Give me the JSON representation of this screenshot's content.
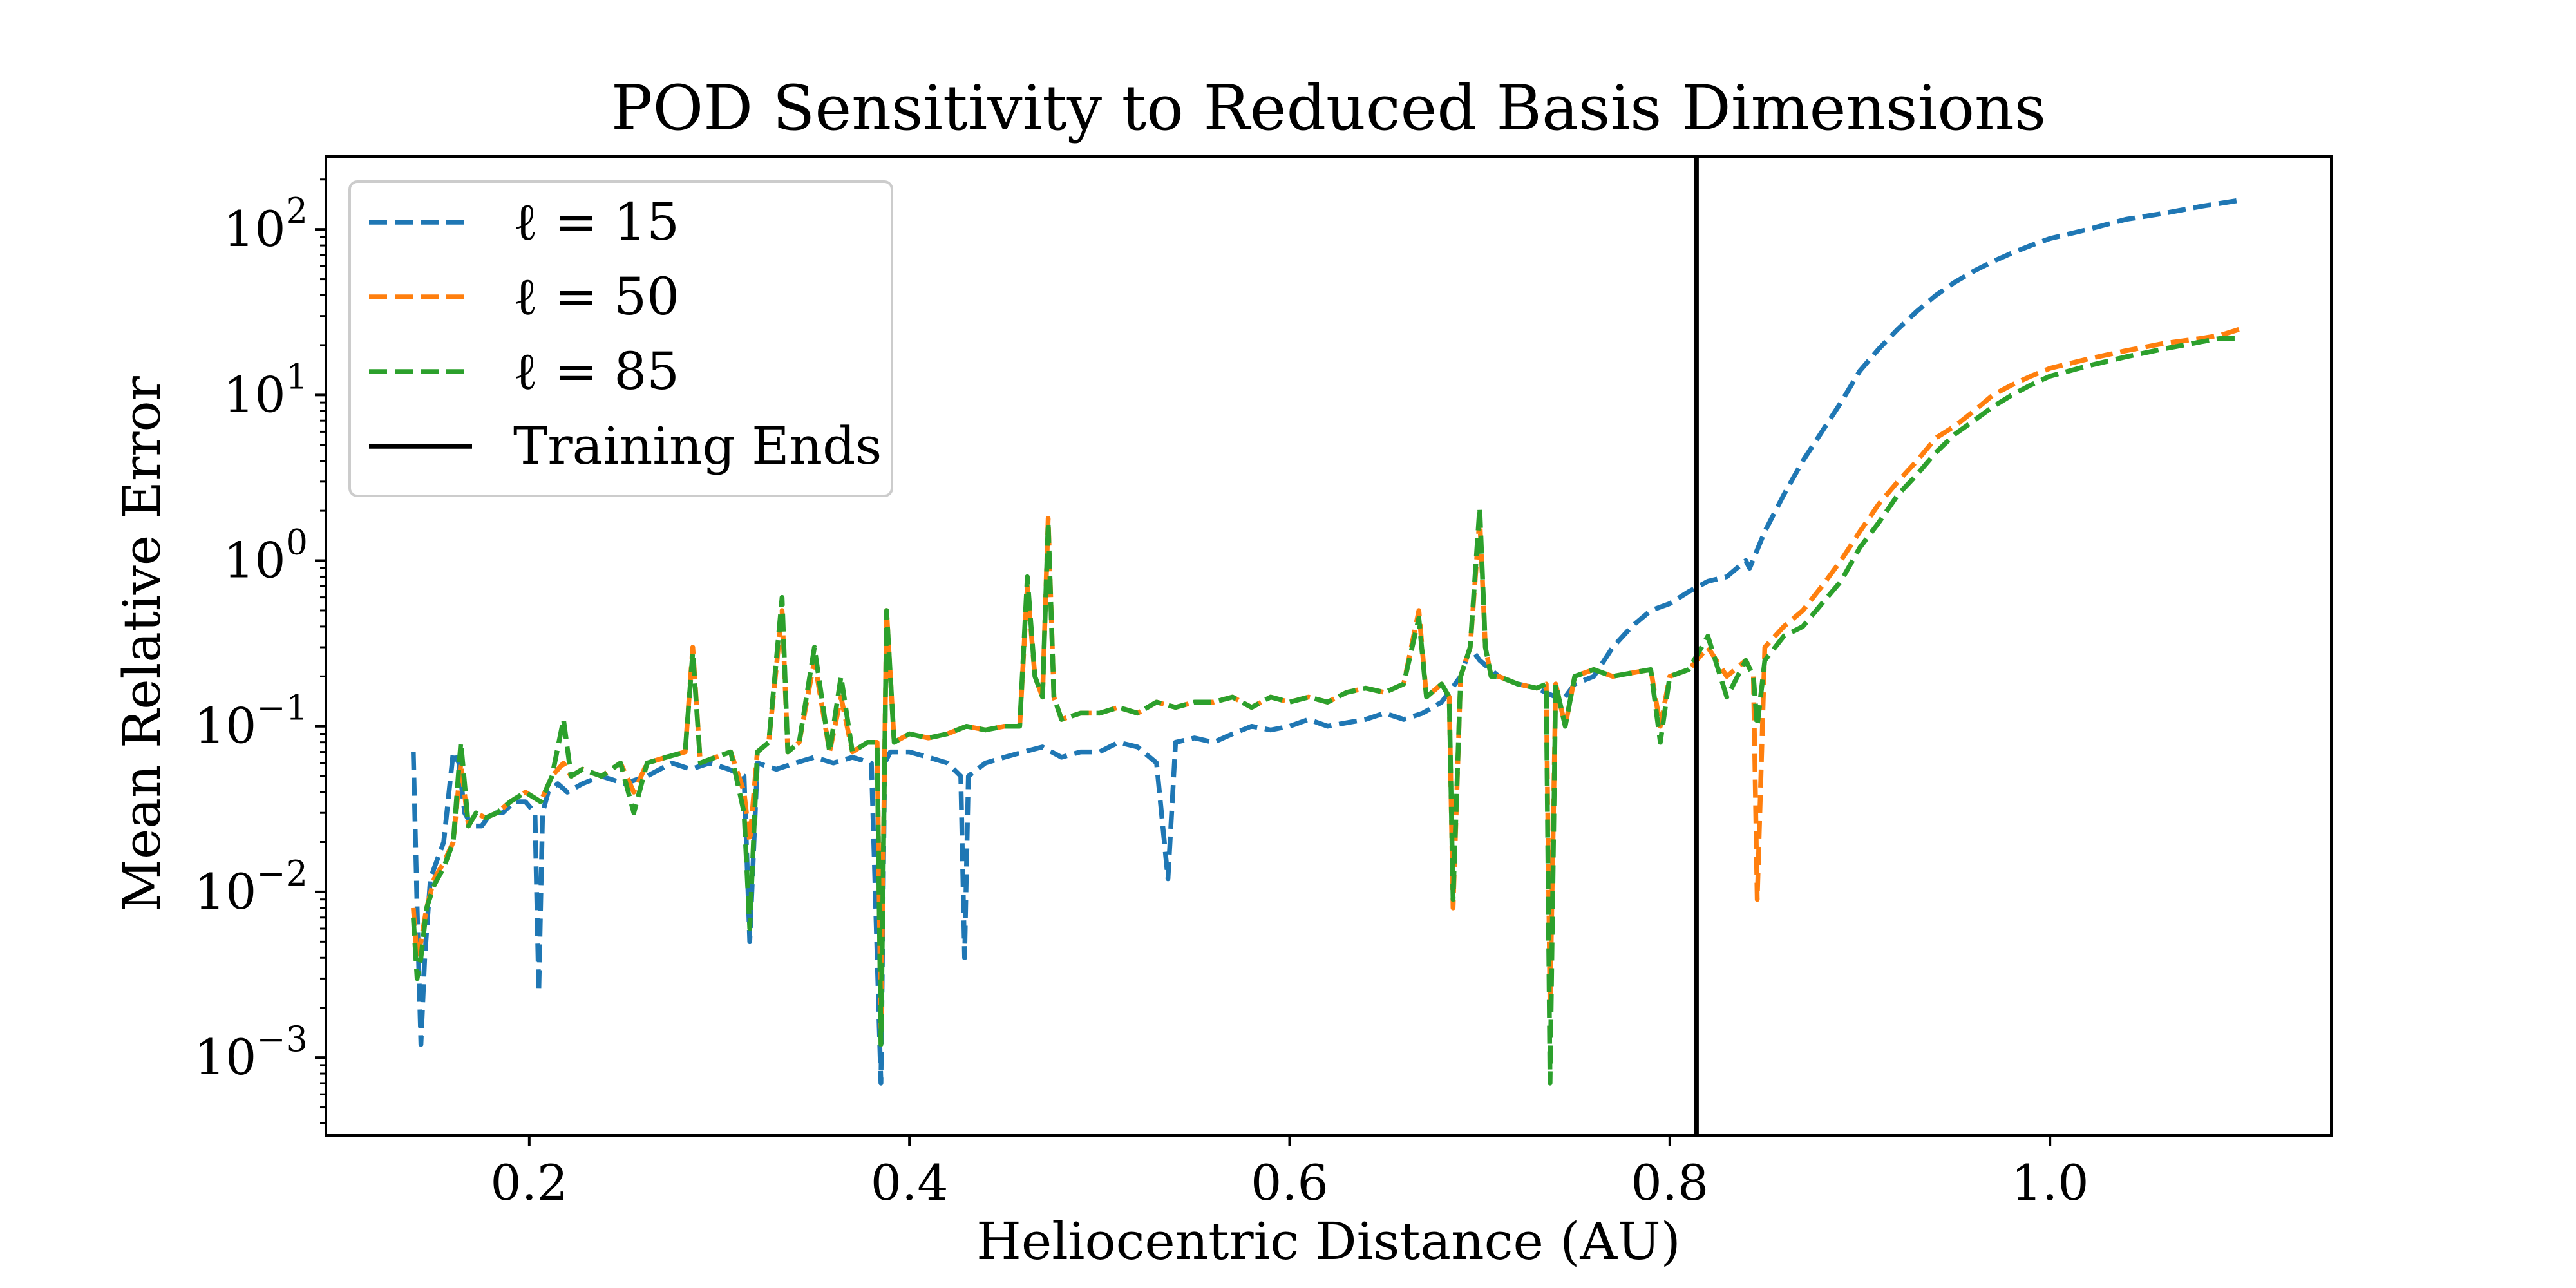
{
  "chart_data": {
    "type": "line",
    "title": "POD Sensitivity to Reduced Basis Dimensions",
    "xlabel": "Heliocentric Distance (AU)",
    "ylabel": "Mean Relative Error",
    "xlim": [
      0.093,
      1.148
    ],
    "ylog": true,
    "ylim_exp": [
      -3.47,
      2.44
    ],
    "xticks": [
      {
        "value": 0.2,
        "label": "0.2"
      },
      {
        "value": 0.4,
        "label": "0.4"
      },
      {
        "value": 0.6,
        "label": "0.6"
      },
      {
        "value": 0.8,
        "label": "0.8"
      },
      {
        "value": 1.0,
        "label": "1.0"
      }
    ],
    "yticks": [
      {
        "exp": -3,
        "base": "10",
        "sup": "−3"
      },
      {
        "exp": -2,
        "base": "10",
        "sup": "−2"
      },
      {
        "exp": -1,
        "base": "10",
        "sup": "−1"
      },
      {
        "exp": 0,
        "base": "10",
        "sup": "0"
      },
      {
        "exp": 1,
        "base": "10",
        "sup": "1"
      },
      {
        "exp": 2,
        "base": "10",
        "sup": "2"
      }
    ],
    "grid": false,
    "legend_position": "top-left",
    "vline": {
      "x": 0.814,
      "label": "Training Ends",
      "color": "#000000"
    },
    "series": [
      {
        "name": "ℓ = 15",
        "color": "#1f77b4",
        "x": [
          0.139,
          0.141,
          0.143,
          0.145,
          0.148,
          0.151,
          0.155,
          0.16,
          0.163,
          0.166,
          0.17,
          0.175,
          0.18,
          0.186,
          0.192,
          0.198,
          0.203,
          0.205,
          0.207,
          0.21,
          0.215,
          0.22,
          0.228,
          0.238,
          0.25,
          0.262,
          0.275,
          0.285,
          0.295,
          0.305,
          0.313,
          0.316,
          0.32,
          0.33,
          0.34,
          0.35,
          0.36,
          0.37,
          0.38,
          0.385,
          0.387,
          0.39,
          0.4,
          0.41,
          0.42,
          0.427,
          0.429,
          0.431,
          0.44,
          0.45,
          0.46,
          0.47,
          0.48,
          0.49,
          0.5,
          0.51,
          0.52,
          0.53,
          0.536,
          0.54,
          0.55,
          0.56,
          0.57,
          0.58,
          0.59,
          0.6,
          0.61,
          0.62,
          0.63,
          0.64,
          0.65,
          0.66,
          0.67,
          0.68,
          0.69,
          0.695,
          0.7,
          0.71,
          0.72,
          0.73,
          0.74,
          0.745,
          0.75,
          0.76,
          0.77,
          0.78,
          0.79,
          0.8,
          0.81,
          0.82,
          0.83,
          0.84,
          0.842,
          0.85,
          0.86,
          0.87,
          0.88,
          0.89,
          0.9,
          0.91,
          0.92,
          0.93,
          0.94,
          0.95,
          0.96,
          0.97,
          0.98,
          0.99,
          1.0,
          1.02,
          1.04,
          1.06,
          1.08,
          1.1
        ],
        "y": [
          0.07,
          0.008,
          0.0012,
          0.004,
          0.012,
          0.015,
          0.02,
          0.07,
          0.06,
          0.03,
          0.025,
          0.025,
          0.03,
          0.03,
          0.035,
          0.035,
          0.03,
          0.0025,
          0.03,
          0.04,
          0.045,
          0.04,
          0.045,
          0.05,
          0.045,
          0.05,
          0.06,
          0.055,
          0.06,
          0.055,
          0.05,
          0.005,
          0.06,
          0.055,
          0.06,
          0.065,
          0.06,
          0.065,
          0.06,
          0.0007,
          0.06,
          0.07,
          0.07,
          0.065,
          0.06,
          0.05,
          0.004,
          0.05,
          0.06,
          0.065,
          0.07,
          0.075,
          0.065,
          0.07,
          0.07,
          0.08,
          0.075,
          0.06,
          0.012,
          0.08,
          0.085,
          0.08,
          0.09,
          0.1,
          0.095,
          0.1,
          0.11,
          0.1,
          0.105,
          0.11,
          0.12,
          0.11,
          0.12,
          0.14,
          0.2,
          0.3,
          0.25,
          0.2,
          0.18,
          0.17,
          0.15,
          0.15,
          0.18,
          0.2,
          0.3,
          0.4,
          0.5,
          0.55,
          0.65,
          0.75,
          0.8,
          1.0,
          0.9,
          1.5,
          2.5,
          4.0,
          6.0,
          9.0,
          14.0,
          19.0,
          25.0,
          32.0,
          40.0,
          48.0,
          56.0,
          64.0,
          72.0,
          80.0,
          88.0,
          100.0,
          115.0,
          125.0,
          138.0,
          150.0
        ]
      },
      {
        "name": "ℓ = 50",
        "color": "#ff7f0e",
        "x": [
          0.139,
          0.141,
          0.143,
          0.146,
          0.15,
          0.155,
          0.16,
          0.164,
          0.168,
          0.172,
          0.177,
          0.183,
          0.19,
          0.198,
          0.206,
          0.212,
          0.218,
          0.222,
          0.228,
          0.238,
          0.248,
          0.255,
          0.262,
          0.272,
          0.282,
          0.286,
          0.29,
          0.298,
          0.306,
          0.313,
          0.316,
          0.32,
          0.326,
          0.333,
          0.336,
          0.342,
          0.35,
          0.358,
          0.364,
          0.37,
          0.378,
          0.383,
          0.385,
          0.388,
          0.392,
          0.4,
          0.41,
          0.42,
          0.43,
          0.44,
          0.45,
          0.458,
          0.462,
          0.466,
          0.47,
          0.473,
          0.476,
          0.48,
          0.49,
          0.5,
          0.51,
          0.52,
          0.53,
          0.54,
          0.55,
          0.56,
          0.57,
          0.58,
          0.59,
          0.6,
          0.61,
          0.62,
          0.63,
          0.64,
          0.65,
          0.66,
          0.668,
          0.672,
          0.68,
          0.684,
          0.686,
          0.69,
          0.695,
          0.7,
          0.703,
          0.706,
          0.71,
          0.72,
          0.73,
          0.735,
          0.737,
          0.74,
          0.745,
          0.75,
          0.76,
          0.77,
          0.78,
          0.79,
          0.795,
          0.8,
          0.81,
          0.82,
          0.83,
          0.84,
          0.844,
          0.846,
          0.85,
          0.86,
          0.87,
          0.88,
          0.89,
          0.9,
          0.91,
          0.92,
          0.93,
          0.94,
          0.95,
          0.96,
          0.97,
          0.98,
          0.99,
          1.0,
          1.02,
          1.04,
          1.06,
          1.08,
          1.09,
          1.1
        ],
        "y": [
          0.008,
          0.004,
          0.005,
          0.008,
          0.012,
          0.015,
          0.02,
          0.06,
          0.025,
          0.03,
          0.028,
          0.03,
          0.035,
          0.04,
          0.035,
          0.05,
          0.06,
          0.05,
          0.055,
          0.05,
          0.06,
          0.04,
          0.06,
          0.065,
          0.07,
          0.3,
          0.06,
          0.065,
          0.07,
          0.04,
          0.02,
          0.07,
          0.08,
          0.5,
          0.07,
          0.08,
          0.25,
          0.07,
          0.15,
          0.07,
          0.08,
          0.08,
          0.0015,
          0.5,
          0.08,
          0.09,
          0.085,
          0.09,
          0.1,
          0.095,
          0.1,
          0.1,
          0.7,
          0.2,
          0.15,
          1.8,
          0.15,
          0.11,
          0.12,
          0.12,
          0.13,
          0.12,
          0.14,
          0.13,
          0.14,
          0.14,
          0.15,
          0.13,
          0.15,
          0.14,
          0.15,
          0.14,
          0.16,
          0.17,
          0.16,
          0.18,
          0.5,
          0.15,
          0.18,
          0.15,
          0.008,
          0.2,
          0.3,
          1.8,
          0.3,
          0.2,
          0.2,
          0.18,
          0.17,
          0.18,
          0.002,
          0.18,
          0.1,
          0.2,
          0.22,
          0.2,
          0.21,
          0.22,
          0.1,
          0.2,
          0.22,
          0.3,
          0.2,
          0.25,
          0.2,
          0.009,
          0.3,
          0.4,
          0.5,
          0.7,
          1.0,
          1.5,
          2.2,
          3.0,
          4.0,
          5.5,
          6.5,
          8.0,
          10.0,
          11.5,
          13.0,
          14.5,
          16.5,
          18.5,
          20.5,
          22.0,
          23.0,
          25.0
        ]
      },
      {
        "name": "ℓ = 85",
        "color": "#2ca02c",
        "x": [
          0.139,
          0.141,
          0.143,
          0.146,
          0.15,
          0.155,
          0.16,
          0.164,
          0.168,
          0.172,
          0.177,
          0.183,
          0.19,
          0.198,
          0.206,
          0.212,
          0.218,
          0.222,
          0.228,
          0.238,
          0.248,
          0.255,
          0.262,
          0.272,
          0.282,
          0.286,
          0.29,
          0.298,
          0.306,
          0.313,
          0.316,
          0.32,
          0.326,
          0.333,
          0.336,
          0.342,
          0.35,
          0.358,
          0.364,
          0.37,
          0.378,
          0.383,
          0.385,
          0.388,
          0.392,
          0.4,
          0.41,
          0.42,
          0.43,
          0.44,
          0.45,
          0.458,
          0.462,
          0.466,
          0.47,
          0.473,
          0.476,
          0.48,
          0.49,
          0.5,
          0.51,
          0.52,
          0.53,
          0.54,
          0.55,
          0.56,
          0.57,
          0.58,
          0.59,
          0.6,
          0.61,
          0.62,
          0.63,
          0.64,
          0.65,
          0.66,
          0.668,
          0.672,
          0.68,
          0.684,
          0.686,
          0.69,
          0.695,
          0.7,
          0.703,
          0.706,
          0.71,
          0.72,
          0.73,
          0.735,
          0.737,
          0.74,
          0.745,
          0.75,
          0.76,
          0.77,
          0.78,
          0.79,
          0.795,
          0.8,
          0.81,
          0.82,
          0.83,
          0.84,
          0.844,
          0.846,
          0.85,
          0.86,
          0.87,
          0.88,
          0.89,
          0.9,
          0.91,
          0.92,
          0.93,
          0.94,
          0.95,
          0.96,
          0.97,
          0.98,
          0.99,
          1.0,
          1.02,
          1.04,
          1.06,
          1.08,
          1.09,
          1.1
        ],
        "y": [
          0.007,
          0.003,
          0.004,
          0.008,
          0.011,
          0.014,
          0.02,
          0.08,
          0.025,
          0.03,
          0.028,
          0.03,
          0.035,
          0.04,
          0.035,
          0.05,
          0.11,
          0.05,
          0.055,
          0.05,
          0.06,
          0.03,
          0.06,
          0.065,
          0.07,
          0.28,
          0.06,
          0.065,
          0.07,
          0.03,
          0.006,
          0.07,
          0.08,
          0.6,
          0.07,
          0.08,
          0.3,
          0.07,
          0.2,
          0.07,
          0.08,
          0.08,
          0.0012,
          0.5,
          0.08,
          0.09,
          0.085,
          0.09,
          0.1,
          0.095,
          0.1,
          0.1,
          0.8,
          0.2,
          0.15,
          1.7,
          0.15,
          0.11,
          0.12,
          0.12,
          0.13,
          0.12,
          0.14,
          0.13,
          0.14,
          0.14,
          0.15,
          0.13,
          0.15,
          0.14,
          0.15,
          0.14,
          0.16,
          0.17,
          0.16,
          0.18,
          0.45,
          0.15,
          0.18,
          0.15,
          0.009,
          0.2,
          0.3,
          2.1,
          0.3,
          0.2,
          0.2,
          0.18,
          0.17,
          0.18,
          0.0007,
          0.18,
          0.1,
          0.2,
          0.22,
          0.2,
          0.21,
          0.22,
          0.08,
          0.2,
          0.22,
          0.35,
          0.15,
          0.25,
          0.2,
          0.1,
          0.25,
          0.35,
          0.4,
          0.55,
          0.75,
          1.2,
          1.7,
          2.5,
          3.3,
          4.5,
          5.8,
          7.0,
          8.5,
          10.0,
          11.5,
          13.0,
          15.0,
          17.0,
          19.0,
          21.0,
          22.0,
          22.0
        ]
      }
    ]
  }
}
